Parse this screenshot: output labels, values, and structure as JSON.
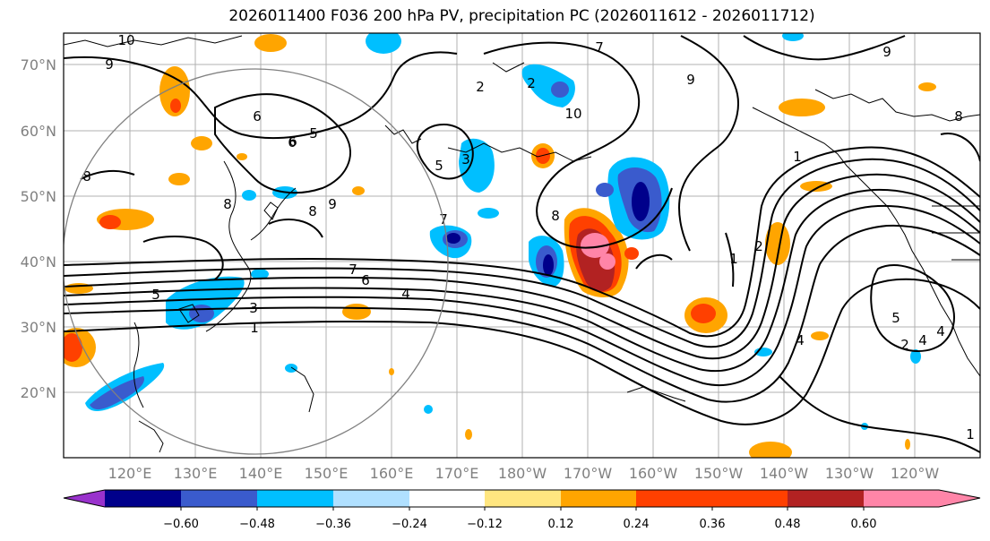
{
  "title": "2026011400 F036 200 hPa PV, precipitation PC (2026011612 - 2026011712)",
  "lat_labels": [
    "70°N",
    "60°N",
    "50°N",
    "40°N",
    "30°N",
    "20°N"
  ],
  "lon_labels": [
    "120°E",
    "130°E",
    "140°E",
    "150°E",
    "160°E",
    "170°E",
    "180°W",
    "170°W",
    "160°W",
    "150°W",
    "140°W",
    "130°W",
    "120°W"
  ],
  "colorbar": {
    "colors": [
      "#9932cc",
      "#00008b",
      "#3a5bcd",
      "#00bfff",
      "#b0e0ff",
      "#ffffff",
      "#ffe680",
      "#ffa500",
      "#ff4000",
      "#b22222",
      "#ff85a8"
    ],
    "ticks": [
      "−0.60",
      "−0.48",
      "−0.36",
      "−0.24",
      "−0.12",
      "0.12",
      "0.24",
      "0.36",
      "0.48",
      "0.60"
    ]
  },
  "contour_labels": [
    "10",
    "9",
    "8",
    "7",
    "6",
    "5",
    "4",
    "3",
    "2",
    "1",
    "10",
    "9",
    "8",
    "7",
    "6",
    "5",
    "4",
    "3",
    "2",
    "1",
    "9",
    "8",
    "7",
    "6",
    "5",
    "4",
    "2",
    "1",
    "5",
    "4",
    "2",
    "1",
    "8",
    "6",
    "9",
    "8"
  ]
}
